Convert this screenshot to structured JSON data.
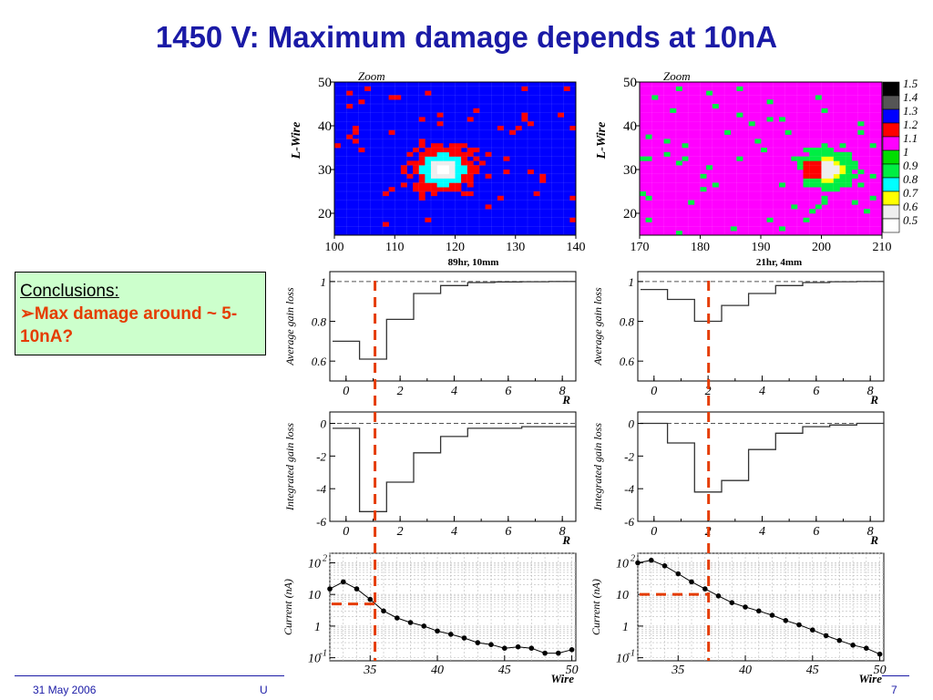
{
  "slide": {
    "title": "1450 V: Maximum damage depends at 10nA",
    "conclusions_heading": "Conclusions:",
    "conclusions_bullet": "➢",
    "conclusions_text": "Max damage around ~ 5-10nA?",
    "footer_date": "31 May 2006",
    "footer_partial": "U",
    "page_number": "7"
  },
  "colors": {
    "title": "#1a1aa6",
    "conclusions_bg": "#ccffcc",
    "conclusions_text": "#e53c00",
    "marker_line": "#e53c00",
    "map_bg_left": "#0000ff",
    "map_bg_right": "#ff00ff"
  },
  "chart_data": [
    {
      "type": "heatmap",
      "panel": "map-left",
      "title": "Zoom",
      "subtitle": "89hr, 10mm",
      "ylabel": "L-Wire",
      "xlim": [
        100,
        140
      ],
      "ylim": [
        15,
        50
      ],
      "x_ticks": [
        100,
        110,
        120,
        130,
        140
      ],
      "y_ticks": [
        20,
        30,
        40,
        50
      ],
      "background_value": 1.3,
      "hotspot_center": [
        118,
        30
      ]
    },
    {
      "type": "heatmap",
      "panel": "map-right",
      "title": "Zoom",
      "subtitle": "21hr, 4mm",
      "ylabel": "L-Wire",
      "xlim": [
        170,
        210
      ],
      "ylim": [
        15,
        50
      ],
      "x_ticks": [
        170,
        180,
        190,
        200,
        210
      ],
      "y_ticks": [
        20,
        30,
        40,
        50
      ],
      "background_value": 1.1,
      "hotspot_center": [
        201,
        30
      ]
    },
    {
      "type": "legend",
      "panel": "color-scale",
      "levels": [
        {
          "label": "1.5",
          "color": "#000000"
        },
        {
          "label": "1.4",
          "color": "#555555"
        },
        {
          "label": "1.3",
          "color": "#0000ff"
        },
        {
          "label": "1.2",
          "color": "#ff0000"
        },
        {
          "label": "1.1",
          "color": "#ff00ff"
        },
        {
          "label": "1",
          "color": "#00dd00"
        },
        {
          "label": "0.9",
          "color": "#00ee44"
        },
        {
          "label": "0.8",
          "color": "#00ffff"
        },
        {
          "label": "0.7",
          "color": "#ffff00"
        },
        {
          "label": "0.6",
          "color": "#eeeeee"
        },
        {
          "label": "0.5",
          "color": "#ffffff"
        }
      ]
    },
    {
      "type": "line",
      "panel": "avg-gain-left",
      "ylabel": "Average gain loss",
      "xlabel": "R",
      "xlim": [
        -0.6,
        8.5
      ],
      "ylim": [
        0.5,
        1.05
      ],
      "x_ticks": [
        0,
        2,
        4,
        6,
        8
      ],
      "y_ticks": [
        {
          "v": 0.6,
          "t": "0.6"
        },
        {
          "v": 0.8,
          "t": "0.8"
        },
        {
          "v": 1,
          "t": "1"
        }
      ],
      "reference": 1,
      "edges": [
        -0.5,
        0.5,
        1.5,
        2.5,
        3.5,
        4.5,
        5.5,
        6.5,
        7.5,
        8.5
      ],
      "values": [
        0.7,
        0.61,
        0.81,
        0.94,
        0.98,
        0.995,
        0.998,
        0.999,
        1.0
      ],
      "marker_x": 1.2
    },
    {
      "type": "line",
      "panel": "avg-gain-right",
      "ylabel": "Average gain loss",
      "xlabel": "R",
      "xlim": [
        -0.6,
        8.5
      ],
      "ylim": [
        0.5,
        1.05
      ],
      "x_ticks": [
        0,
        2,
        4,
        6,
        8
      ],
      "y_ticks": [
        {
          "v": 0.6,
          "t": "0.6"
        },
        {
          "v": 0.8,
          "t": "0.8"
        },
        {
          "v": 1,
          "t": "1"
        }
      ],
      "reference": 1,
      "edges": [
        -0.5,
        0.5,
        1.5,
        2.5,
        3.5,
        4.5,
        5.5,
        6.5,
        7.5,
        8.5
      ],
      "values": [
        0.96,
        0.91,
        0.8,
        0.88,
        0.94,
        0.98,
        0.995,
        0.999,
        1.0
      ],
      "marker_x": 2.1
    },
    {
      "type": "line",
      "panel": "int-gain-left",
      "ylabel": "Integrated gain loss",
      "xlabel": "R",
      "xlim": [
        -0.6,
        8.5
      ],
      "ylim": [
        -6,
        0.7
      ],
      "x_ticks": [
        0,
        2,
        4,
        6,
        8
      ],
      "y_ticks": [
        {
          "v": -6,
          "t": "-6"
        },
        {
          "v": -4,
          "t": "-4"
        },
        {
          "v": -2,
          "t": "-2"
        },
        {
          "v": 0,
          "t": "0"
        }
      ],
      "reference": 0,
      "edges": [
        -0.5,
        0.5,
        1.5,
        2.5,
        3.5,
        4.5,
        5.5,
        6.5,
        7.5,
        8.5
      ],
      "values": [
        -0.3,
        -5.4,
        -3.6,
        -1.8,
        -0.8,
        -0.3,
        -0.3,
        -0.2,
        -0.2
      ],
      "marker_x": 1.2
    },
    {
      "type": "line",
      "panel": "int-gain-right",
      "ylabel": "Integrated gain loss",
      "xlabel": "R",
      "xlim": [
        -0.6,
        8.5
      ],
      "ylim": [
        -6,
        0.7
      ],
      "x_ticks": [
        0,
        2,
        4,
        6,
        8
      ],
      "y_ticks": [
        {
          "v": -6,
          "t": "-6"
        },
        {
          "v": -4,
          "t": "-4"
        },
        {
          "v": -2,
          "t": "-2"
        },
        {
          "v": 0,
          "t": "0"
        }
      ],
      "reference": 0,
      "edges": [
        -0.5,
        0.5,
        1.5,
        2.5,
        3.5,
        4.5,
        5.5,
        6.5,
        7.5,
        8.5
      ],
      "values": [
        0,
        -1.2,
        -4.2,
        -3.5,
        -1.6,
        -0.6,
        -0.2,
        -0.1,
        0
      ],
      "marker_x": 2.1
    },
    {
      "type": "scatter",
      "panel": "current-left",
      "ylabel": "Current (nA)",
      "xlabel": "Wire",
      "log_y": true,
      "xlim": [
        32,
        50.3
      ],
      "ylim": [
        0.08,
        200
      ],
      "x_ticks": [
        35,
        40,
        45,
        50
      ],
      "y_ticks": [
        {
          "v": 0.1,
          "b": "10",
          "e": "-1"
        },
        {
          "v": 1,
          "b": "1",
          "e": ""
        },
        {
          "v": 10,
          "b": "10",
          "e": ""
        },
        {
          "v": 100,
          "b": "10",
          "e": "2"
        }
      ],
      "x": [
        32,
        33,
        34,
        35,
        36,
        37,
        38,
        39,
        40,
        41,
        42,
        43,
        44,
        45,
        46,
        47,
        48,
        49,
        50
      ],
      "y": [
        15,
        25,
        15,
        7,
        3,
        1.8,
        1.3,
        1.0,
        0.7,
        0.55,
        0.42,
        0.3,
        0.26,
        0.2,
        0.22,
        0.2,
        0.14,
        0.14,
        0.18
      ],
      "marker_x": 35.1,
      "marker_y": 5
    },
    {
      "type": "scatter",
      "panel": "current-right",
      "ylabel": "Current (nA)",
      "xlabel": "Wire",
      "log_y": true,
      "xlim": [
        32,
        50.3
      ],
      "ylim": [
        0.08,
        200
      ],
      "x_ticks": [
        35,
        40,
        45,
        50
      ],
      "y_ticks": [
        {
          "v": 0.1,
          "b": "10",
          "e": "-1"
        },
        {
          "v": 1,
          "b": "1",
          "e": ""
        },
        {
          "v": 10,
          "b": "10",
          "e": ""
        },
        {
          "v": 100,
          "b": "10",
          "e": "2"
        }
      ],
      "x": [
        32,
        33,
        34,
        35,
        36,
        37,
        38,
        39,
        40,
        41,
        42,
        43,
        44,
        45,
        46,
        47,
        48,
        49,
        50
      ],
      "y": [
        100,
        120,
        80,
        45,
        25,
        15,
        9,
        5.5,
        4,
        3,
        2.2,
        1.5,
        1.1,
        0.75,
        0.5,
        0.35,
        0.25,
        0.2,
        0.13
      ],
      "marker_x": 37.1,
      "marker_y": 10
    }
  ]
}
